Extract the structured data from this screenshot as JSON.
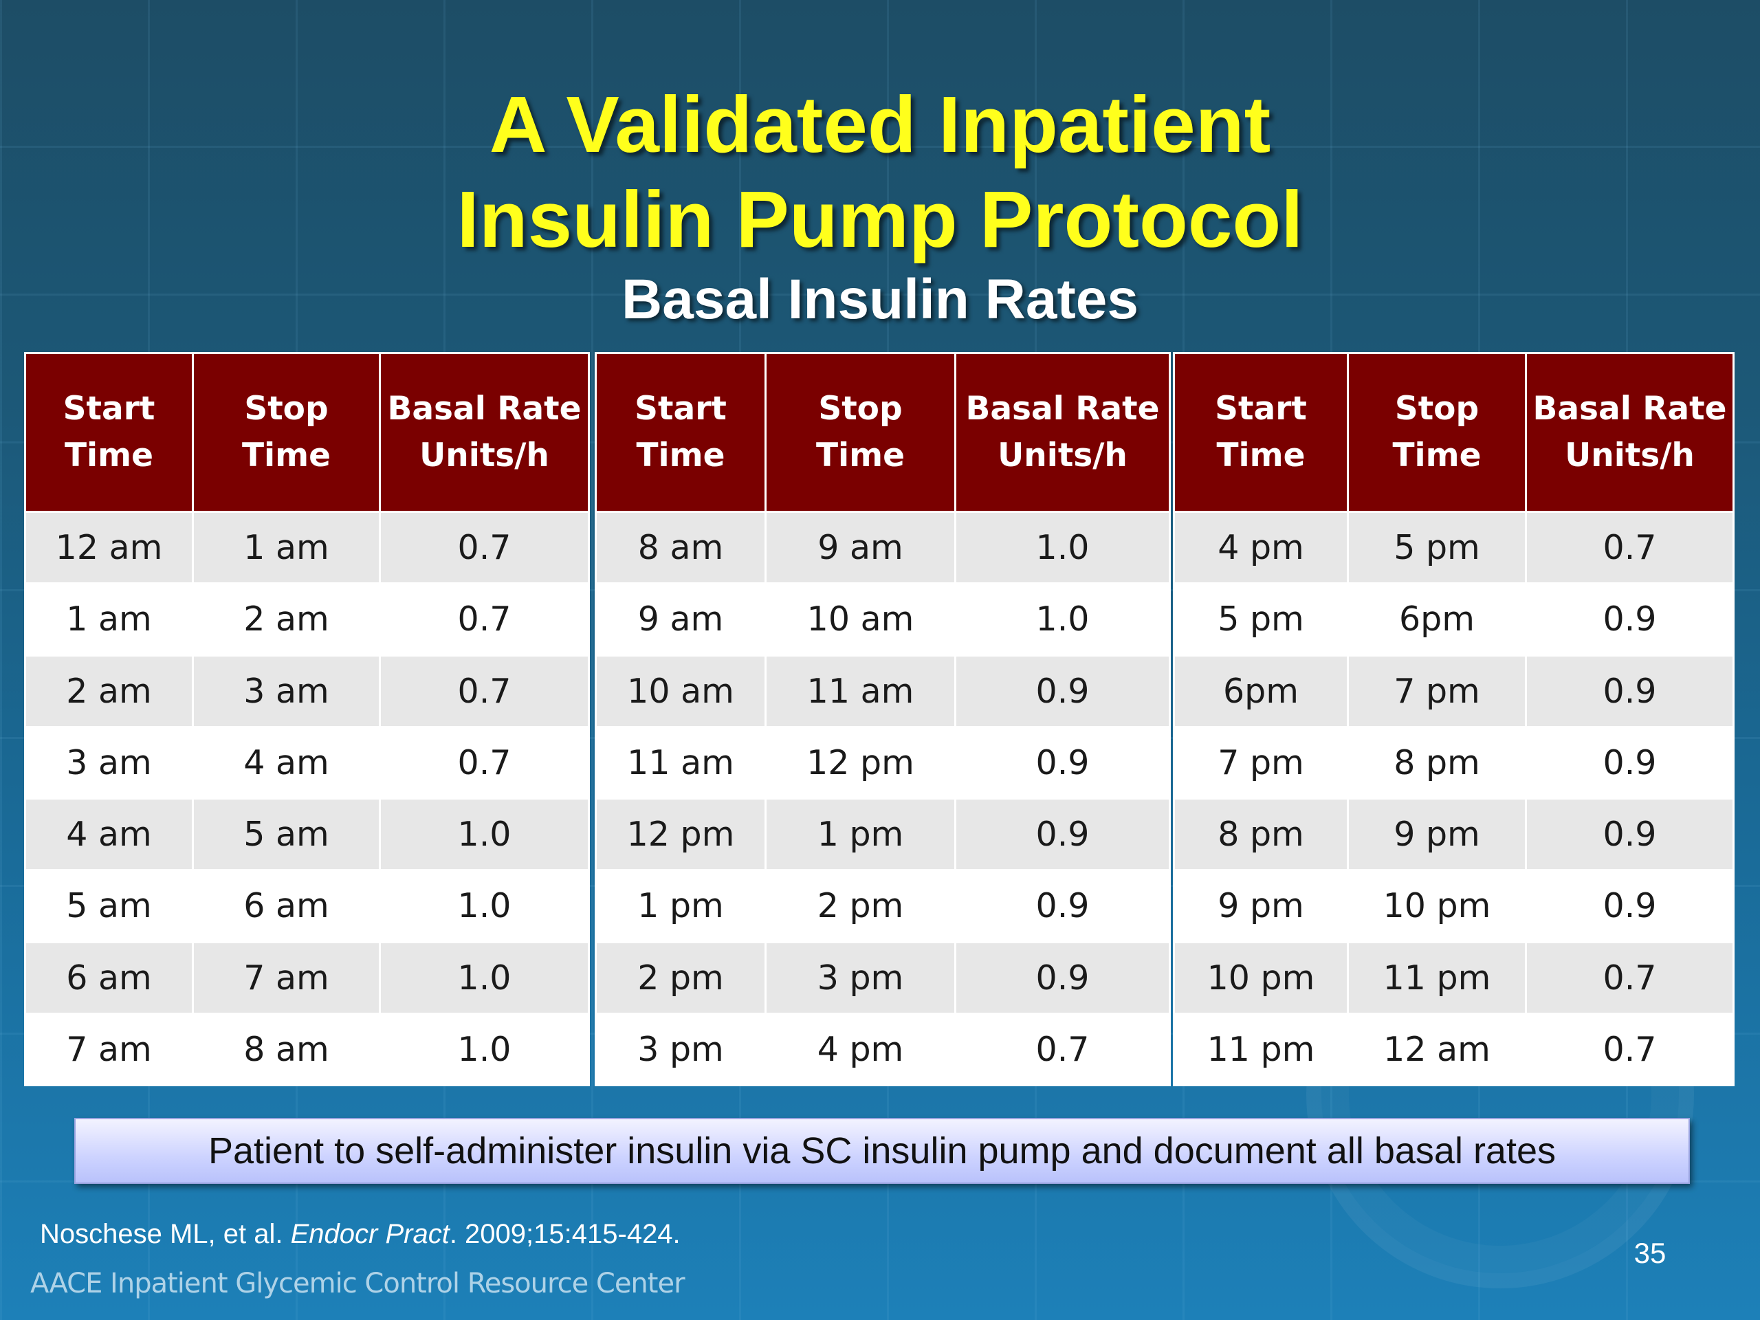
{
  "title": {
    "line1": "A Validated Inpatient",
    "line2": "Insulin Pump Protocol"
  },
  "subtitle": "Basal Insulin Rates",
  "table_headers": {
    "start": [
      "Start",
      "Time"
    ],
    "stop": [
      "Stop",
      "Time"
    ],
    "rate": [
      "Basal Rate",
      "Units/h"
    ]
  },
  "tables": [
    {
      "rows": [
        [
          "12 am",
          "1 am",
          "0.7"
        ],
        [
          "1 am",
          "2 am",
          "0.7"
        ],
        [
          "2 am",
          "3 am",
          "0.7"
        ],
        [
          "3 am",
          "4 am",
          "0.7"
        ],
        [
          "4 am",
          "5 am",
          "1.0"
        ],
        [
          "5 am",
          "6 am",
          "1.0"
        ],
        [
          "6 am",
          "7 am",
          "1.0"
        ],
        [
          "7 am",
          "8 am",
          "1.0"
        ]
      ]
    },
    {
      "rows": [
        [
          "8 am",
          "9 am",
          "1.0"
        ],
        [
          "9 am",
          "10 am",
          "1.0"
        ],
        [
          "10 am",
          "11 am",
          "0.9"
        ],
        [
          "11 am",
          "12 pm",
          "0.9"
        ],
        [
          "12 pm",
          "1 pm",
          "0.9"
        ],
        [
          "1 pm",
          "2 pm",
          "0.9"
        ],
        [
          "2 pm",
          "3 pm",
          "0.9"
        ],
        [
          "3 pm",
          "4 pm",
          "0.7"
        ]
      ]
    },
    {
      "rows": [
        [
          "4 pm",
          "5 pm",
          "0.7"
        ],
        [
          "5 pm",
          "6pm",
          "0.9"
        ],
        [
          "6pm",
          "7 pm",
          "0.9"
        ],
        [
          "7 pm",
          "8 pm",
          "0.9"
        ],
        [
          "8 pm",
          "9 pm",
          "0.9"
        ],
        [
          "9 pm",
          "10 pm",
          "0.9"
        ],
        [
          "10 pm",
          "11 pm",
          "0.7"
        ],
        [
          "11 pm",
          "12 am",
          "0.7"
        ]
      ]
    }
  ],
  "note": "Patient to self-administer insulin via SC insulin pump and document all basal rates",
  "citation": {
    "authors": "Noschese ML, et al. ",
    "journal": "Endocr Pract",
    "details": ". 2009;15:415-424."
  },
  "footer": "AACE Inpatient Glycemic Control Resource Center",
  "page_number": "35"
}
